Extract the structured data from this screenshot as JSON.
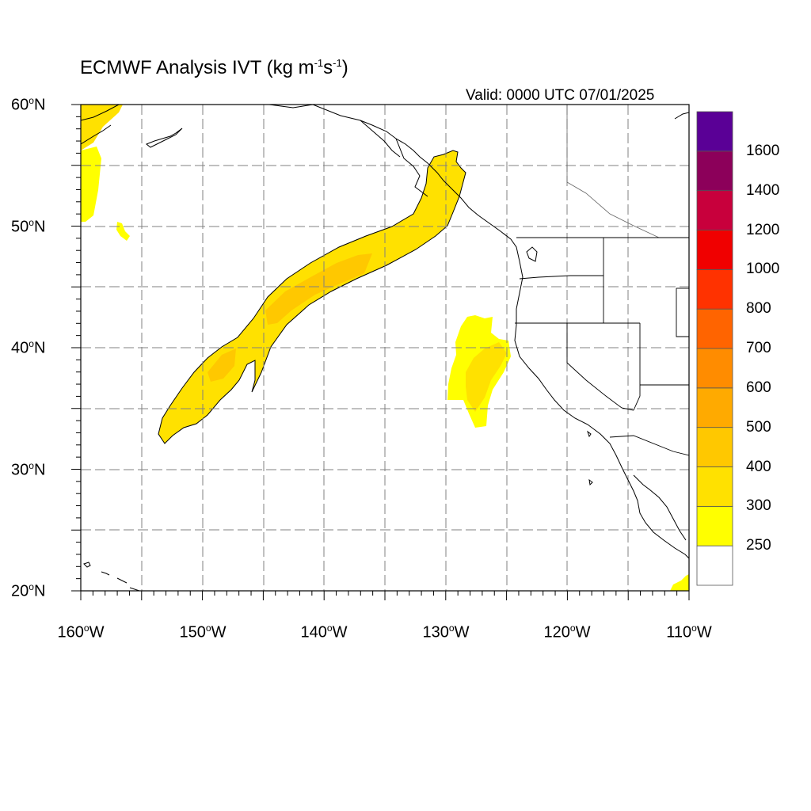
{
  "title": {
    "main": "ECMWF Analysis IVT (kg m",
    "sup1": "-1",
    "mid": "s",
    "sup2": "-1",
    "end": ")"
  },
  "valid_label": "Valid: 0000 UTC 07/01/2025",
  "degree_symbol": "o",
  "map_extent": {
    "lon_range": [
      -160,
      -110
    ],
    "lat_range": [
      20,
      60
    ]
  },
  "lat_labels": [
    {
      "num": "60",
      "hemi": "N"
    },
    {
      "num": "50",
      "hemi": "N"
    },
    {
      "num": "40",
      "hemi": "N"
    },
    {
      "num": "30",
      "hemi": "N"
    },
    {
      "num": "20",
      "hemi": "N"
    }
  ],
  "lon_labels": [
    {
      "num": "160",
      "hemi": "W"
    },
    {
      "num": "150",
      "hemi": "W"
    },
    {
      "num": "140",
      "hemi": "W"
    },
    {
      "num": "130",
      "hemi": "W"
    },
    {
      "num": "120",
      "hemi": "W"
    },
    {
      "num": "110",
      "hemi": "W"
    }
  ],
  "colorbar": {
    "colors": [
      "#ffffff",
      "#ffff00",
      "#ffe100",
      "#ffc800",
      "#ffaa00",
      "#ff8c00",
      "#ff6400",
      "#ff3200",
      "#f00000",
      "#c8003c",
      "#8c005a",
      "#5a0096"
    ],
    "labels": [
      "250",
      "300",
      "400",
      "500",
      "600",
      "700",
      "800",
      "1000",
      "1200",
      "1400",
      "1600"
    ]
  },
  "colors": {
    "ivt_250": "#ffff00",
    "ivt_300": "#ffe100",
    "ivt_400": "#ffc800",
    "ivt_500": "#ffaa00",
    "coast": "#000000",
    "grid": "#808080"
  }
}
